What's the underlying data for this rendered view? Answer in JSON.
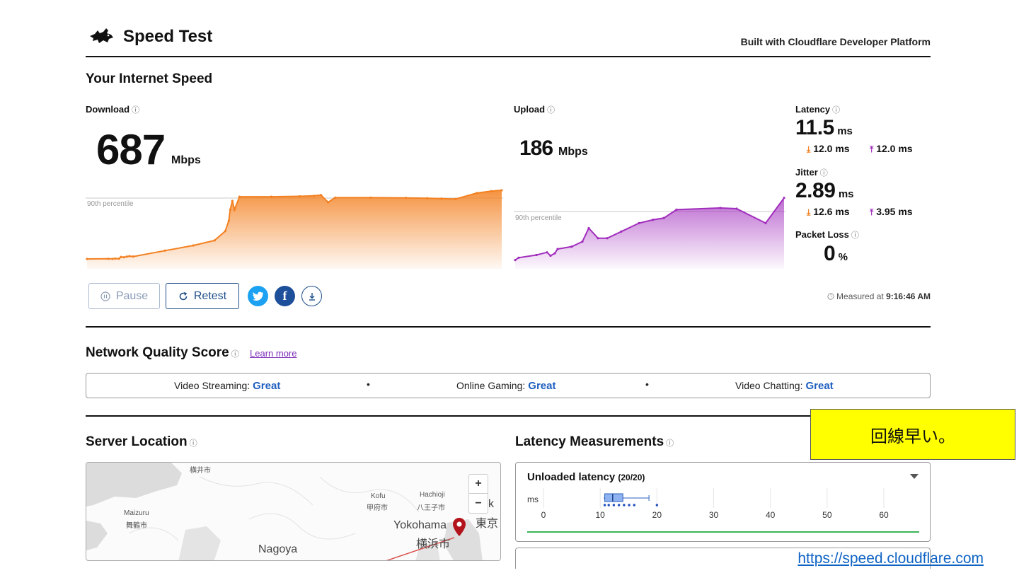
{
  "header": {
    "title": "Speed Test",
    "built_with": "Built with Cloudflare Developer Platform"
  },
  "speed": {
    "section_title": "Your Internet Speed",
    "info_symbol": "ⓘ",
    "download": {
      "label": "Download",
      "value": "687",
      "unit": "Mbps",
      "percentile_label": "90th percentile"
    },
    "upload": {
      "label": "Upload",
      "value": "186",
      "unit": "Mbps",
      "percentile_label": "90th percentile"
    },
    "latency": {
      "label": "Latency",
      "value": "11.5",
      "unit": "ms",
      "down": "12.0 ms",
      "up": "12.0 ms"
    },
    "jitter": {
      "label": "Jitter",
      "value": "2.89",
      "unit": "ms",
      "down": "12.6 ms",
      "up": "3.95 ms"
    },
    "packet_loss": {
      "label": "Packet Loss",
      "value": "0",
      "unit": "%"
    }
  },
  "actions": {
    "pause": "Pause",
    "retest": "Retest",
    "measured_prefix": "Measured at",
    "measured_time": "9:16:46 AM"
  },
  "nqs": {
    "title": "Network Quality Score",
    "learn_more": "Learn more",
    "items": [
      {
        "label": "Video Streaming:",
        "value": "Great"
      },
      {
        "label": "Online Gaming:",
        "value": "Great"
      },
      {
        "label": "Video Chatting:",
        "value": "Great"
      }
    ],
    "separator": "•"
  },
  "server_location": {
    "title": "Server Location",
    "map_labels": [
      "横井市",
      "Maizuru",
      "舞鶴市",
      "Kofu",
      "甲府市",
      "Hachioji",
      "八王子市",
      "Yokohama",
      "横浜市",
      "東京",
      "k",
      "Nagoya"
    ],
    "zoom_in": "+",
    "zoom_out": "−"
  },
  "latency_measurements": {
    "title": "Latency Measurements",
    "unloaded_title": "Unloaded latency",
    "unloaded_count": "(20/20)",
    "axis_unit": "ms",
    "axis_ticks": [
      "0",
      "10",
      "20",
      "30",
      "40",
      "50",
      "60"
    ]
  },
  "annotation": {
    "note": "回線早い。",
    "source_link": "https://speed.cloudflare.com"
  },
  "colors": {
    "download": "#f38020",
    "upload": "#a12dbd",
    "accent_blue": "#1f4f89",
    "great": "#1f5fbf"
  },
  "chart_data": [
    {
      "type": "area",
      "series": [
        {
          "name": "Download",
          "values": [
            30,
            32,
            31,
            34,
            33,
            52,
            48,
            55,
            60,
            56,
            120,
            175,
            230,
            330,
            440,
            560,
            655,
            560,
            700,
            700,
            705,
            710,
            718,
            640,
            690,
            690,
            688,
            684,
            680,
            676,
            740,
            760,
            770
          ]
        }
      ],
      "x": [
        0,
        30,
        36,
        40,
        45,
        48,
        52,
        56,
        60,
        65,
        110,
        150,
        180,
        195,
        200,
        202,
        205,
        208,
        215,
        260,
        300,
        320,
        330,
        340,
        350,
        400,
        450,
        480,
        500,
        520,
        550,
        570,
        585
      ]
    },
    {
      "type": "area",
      "series": [
        {
          "name": "Upload",
          "values": [
            5,
            12,
            20,
            28,
            18,
            25,
            38,
            45,
            60,
            100,
            70,
            70,
            90,
            115,
            125,
            130,
            155,
            160,
            158,
            115,
            190
          ]
        }
      ],
      "x": [
        0,
        5,
        30,
        45,
        50,
        56,
        60,
        80,
        95,
        104,
        117,
        130,
        150,
        175,
        195,
        210,
        228,
        290,
        313,
        354,
        380
      ]
    },
    {
      "type": "box",
      "title": "Unloaded latency",
      "xlabel": "ms",
      "xlim": [
        0,
        60
      ],
      "box": {
        "min": 10.6,
        "q1": 10.8,
        "median": 12.2,
        "q3": 14.0,
        "max": 18.6
      },
      "points": [
        10.8,
        11.5,
        12.4,
        13.3,
        14.2,
        15.1,
        16.0,
        20.0
      ]
    }
  ]
}
